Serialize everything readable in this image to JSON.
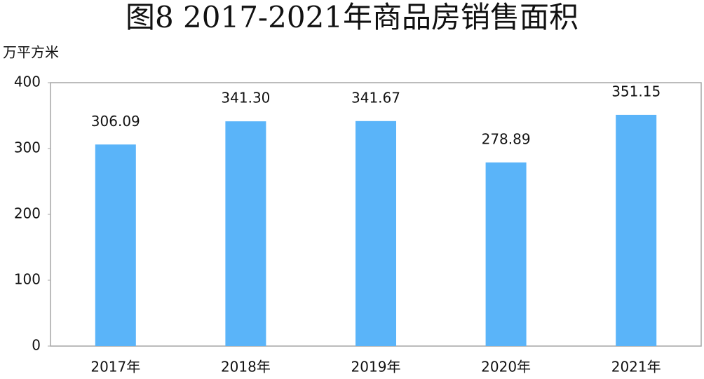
{
  "chart_data": {
    "type": "bar",
    "title": "图8  2017-2021年商品房销售面积",
    "y_label": "万平方米",
    "categories": [
      "2017年",
      "2018年",
      "2019年",
      "2020年",
      "2021年"
    ],
    "values": [
      306.09,
      341.3,
      341.67,
      278.89,
      351.15
    ],
    "value_labels": [
      "306.09",
      "341.30",
      "341.67",
      "278.89",
      "351.15"
    ],
    "color": "#5ab4f9",
    "ylim": [
      0,
      400
    ],
    "yticks": [
      0,
      100,
      200,
      300,
      400
    ],
    "grid": false
  }
}
